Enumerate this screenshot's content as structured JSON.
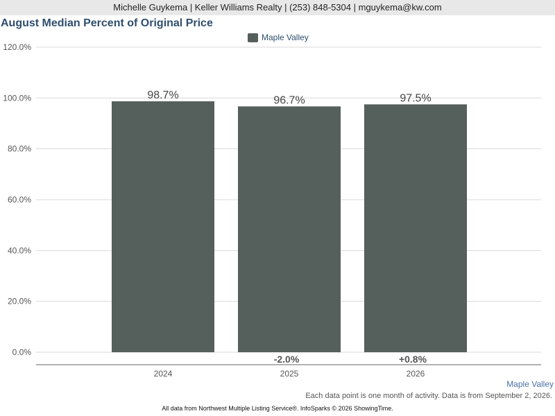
{
  "header": {
    "contact": "Michelle Guykema | Keller Williams Realty | (253) 848-5304 | mguykema@kw.com"
  },
  "chart_data": {
    "type": "bar",
    "title": "August Median Percent of Original Price",
    "categories": [
      "2024",
      "2025",
      "2026"
    ],
    "series": [
      {
        "name": "Maple Valley",
        "color": "#555f5c",
        "values": [
          98.7,
          96.7,
          97.5
        ],
        "value_labels": [
          "98.7%",
          "96.7%",
          "97.5%"
        ],
        "change_labels": [
          "",
          "-2.0%",
          "+0.8%"
        ]
      }
    ],
    "ylim": [
      0,
      120
    ],
    "yticks": [
      0,
      20,
      40,
      60,
      80,
      100,
      120
    ],
    "ytick_labels": [
      "0.0%",
      "20.0%",
      "40.0%",
      "60.0%",
      "80.0%",
      "100.0%",
      "120.0%"
    ],
    "grid": true,
    "legend_position": "top-center",
    "xlabel": "",
    "ylabel": ""
  },
  "footer": {
    "series_label": "Maple Valley",
    "note": "Each data point is one month of activity. Data is from September 2, 2026.",
    "source": "All data from Northwest Multiple Listing Service®. InfoSparks © 2026 ShowingTime."
  }
}
